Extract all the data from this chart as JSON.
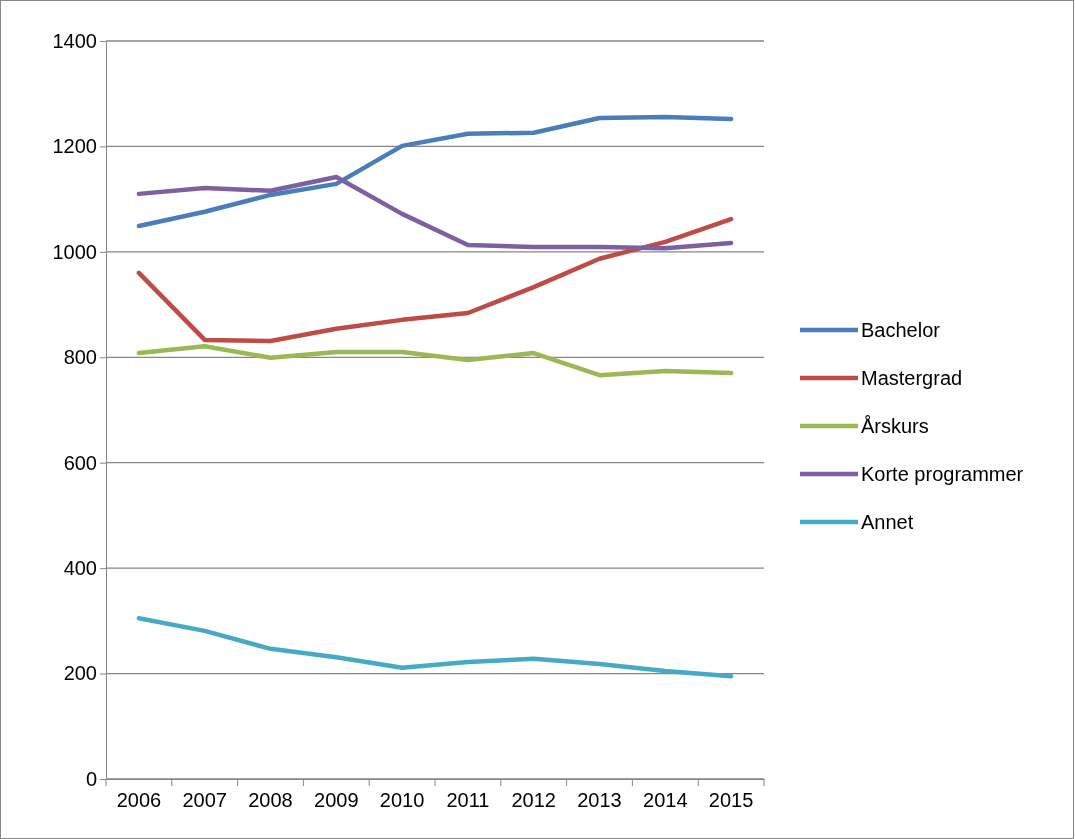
{
  "chart_data": {
    "type": "line",
    "categories": [
      "2006",
      "2007",
      "2008",
      "2009",
      "2010",
      "2011",
      "2012",
      "2013",
      "2014",
      "2015"
    ],
    "series": [
      {
        "name": "Bachelor",
        "color": "#4a7ebb",
        "values": [
          1049,
          1076,
          1108,
          1129,
          1201,
          1224,
          1226,
          1254,
          1256,
          1252
        ]
      },
      {
        "name": "Mastergrad",
        "color": "#be4b48",
        "values": [
          960,
          833,
          831,
          854,
          871,
          884,
          933,
          987,
          1019,
          1062
        ]
      },
      {
        "name": "Årskurs",
        "color": "#98b954",
        "values": [
          808,
          821,
          799,
          810,
          810,
          795,
          808,
          766,
          774,
          770
        ]
      },
      {
        "name": "Korte programmer",
        "color": "#7d60a0",
        "values": [
          1110,
          1121,
          1116,
          1142,
          1072,
          1013,
          1009,
          1009,
          1007,
          1017
        ]
      },
      {
        "name": "Annet",
        "color": "#46aac5",
        "values": [
          305,
          281,
          247,
          231,
          211,
          222,
          228,
          218,
          205,
          195
        ]
      }
    ],
    "ylim": [
      0,
      1400
    ],
    "yticks": [
      0,
      200,
      400,
      600,
      800,
      1000,
      1200,
      1400
    ],
    "grid": "y",
    "legend": "right",
    "marker": "none",
    "line_style": "solid"
  }
}
